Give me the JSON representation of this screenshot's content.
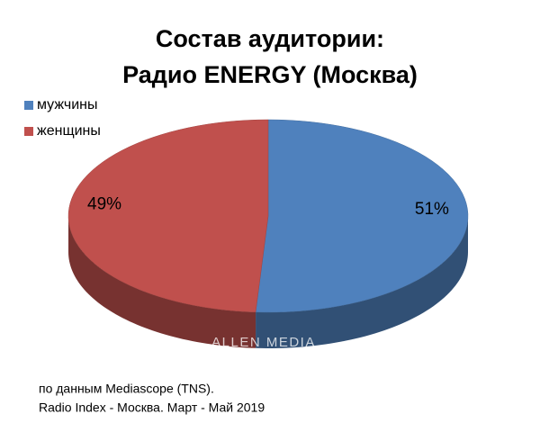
{
  "chart_data": {
    "type": "pie",
    "title": "Состав аудитории:",
    "subtitle": "Радио ENERGY (Москва)",
    "categories": [
      "мужчины",
      "женщины"
    ],
    "values": [
      51,
      49
    ],
    "value_labels": [
      "51%",
      "49%"
    ],
    "colors": [
      "#4f81bd",
      "#c0504d"
    ],
    "legend": "top-left",
    "watermark": "ALLEN MEDIA",
    "note": [
      "по данным Mediascope (TNS).",
      "Radio Index - Москва. Март - Май 2019"
    ]
  }
}
